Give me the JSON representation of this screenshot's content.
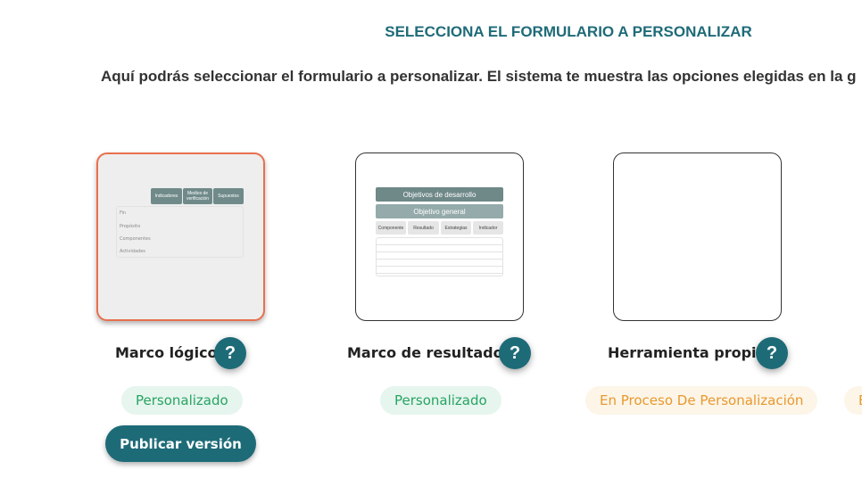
{
  "header": {
    "title": "SELECCIONA EL FORMULARIO A PERSONALIZAR",
    "subtitle": "Aquí podrás seleccionar el formulario a personalizar. El sistema te muestra las opciones elegidas en la g"
  },
  "forms": [
    {
      "label": "Marco lógico",
      "status": "Personalizado",
      "selected": true,
      "preview": {
        "columns": [
          "Indicadores",
          "Medios de verificación",
          "Supuestos"
        ],
        "rows": [
          "Fin",
          "Propósito",
          "Componentes",
          "Actividades"
        ]
      }
    },
    {
      "label": "Marco de resultados",
      "status": "Personalizado",
      "preview": {
        "banner1": "Objetivos de desarrollo",
        "banner2": "Objetivo general",
        "columns": [
          "Componente",
          "Resultado",
          "Estrategias",
          "Indicador"
        ]
      }
    },
    {
      "label": "Herramienta propia",
      "status": "En Proceso De Personalización"
    },
    {
      "status": "E"
    }
  ],
  "help_icon": "?",
  "publish_label": "Publicar versión",
  "colors": {
    "primary": "#1e6b78",
    "selected_border": "#e8704d",
    "ok": "#27a462",
    "in_process": "#e8992e"
  }
}
